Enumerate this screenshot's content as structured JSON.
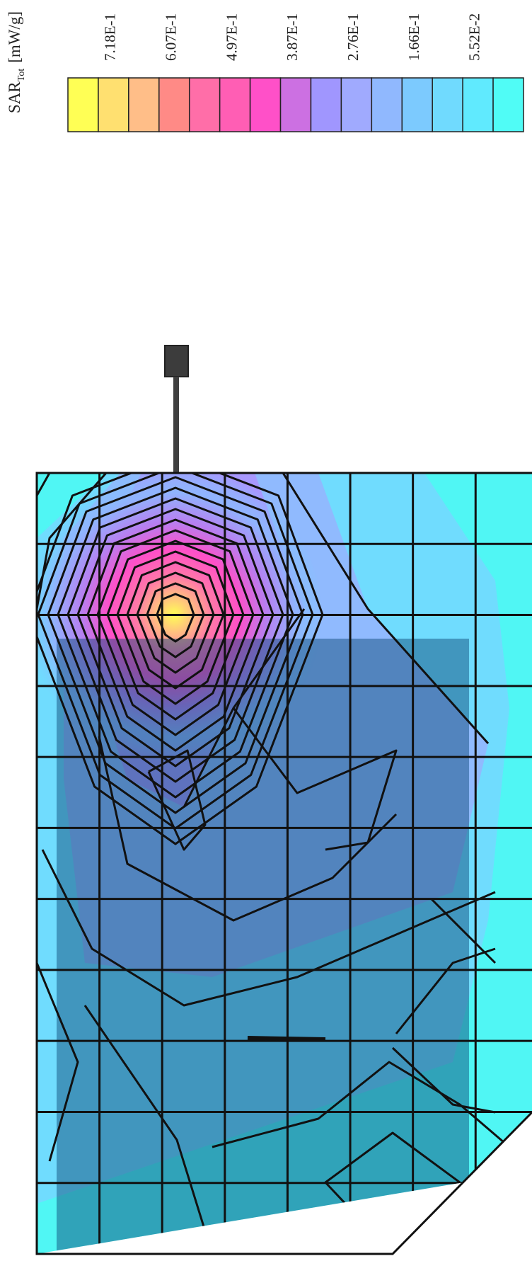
{
  "chart_data": {
    "type": "heatmap",
    "title": "",
    "xlabel": "",
    "ylabel": "",
    "legend_placement": "top",
    "colorbar": {
      "quantity": "SAR",
      "quantity_subscript": "Tot",
      "unit": "[mW/g]",
      "tick_labels": [
        "7.18E-1",
        "6.07E-1",
        "4.97E-1",
        "3.87E-1",
        "2.76E-1",
        "1.66E-1",
        "5.52E-2"
      ],
      "colors": [
        "#ffff55",
        "#ffe070",
        "#ffbe88",
        "#ff8a86",
        "#ff6ea8",
        "#ff5eb4",
        "#ff50c8",
        "#cc70e2",
        "#a096fe",
        "#a0aafe",
        "#90b8fe",
        "#7ccafe",
        "#70dafe",
        "#60eafe",
        "#50fcf6"
      ]
    },
    "grid": true,
    "grid_cells": [
      7,
      11
    ],
    "peak_value_label": "7.18E-1",
    "min_value_label": "5.52E-2"
  }
}
